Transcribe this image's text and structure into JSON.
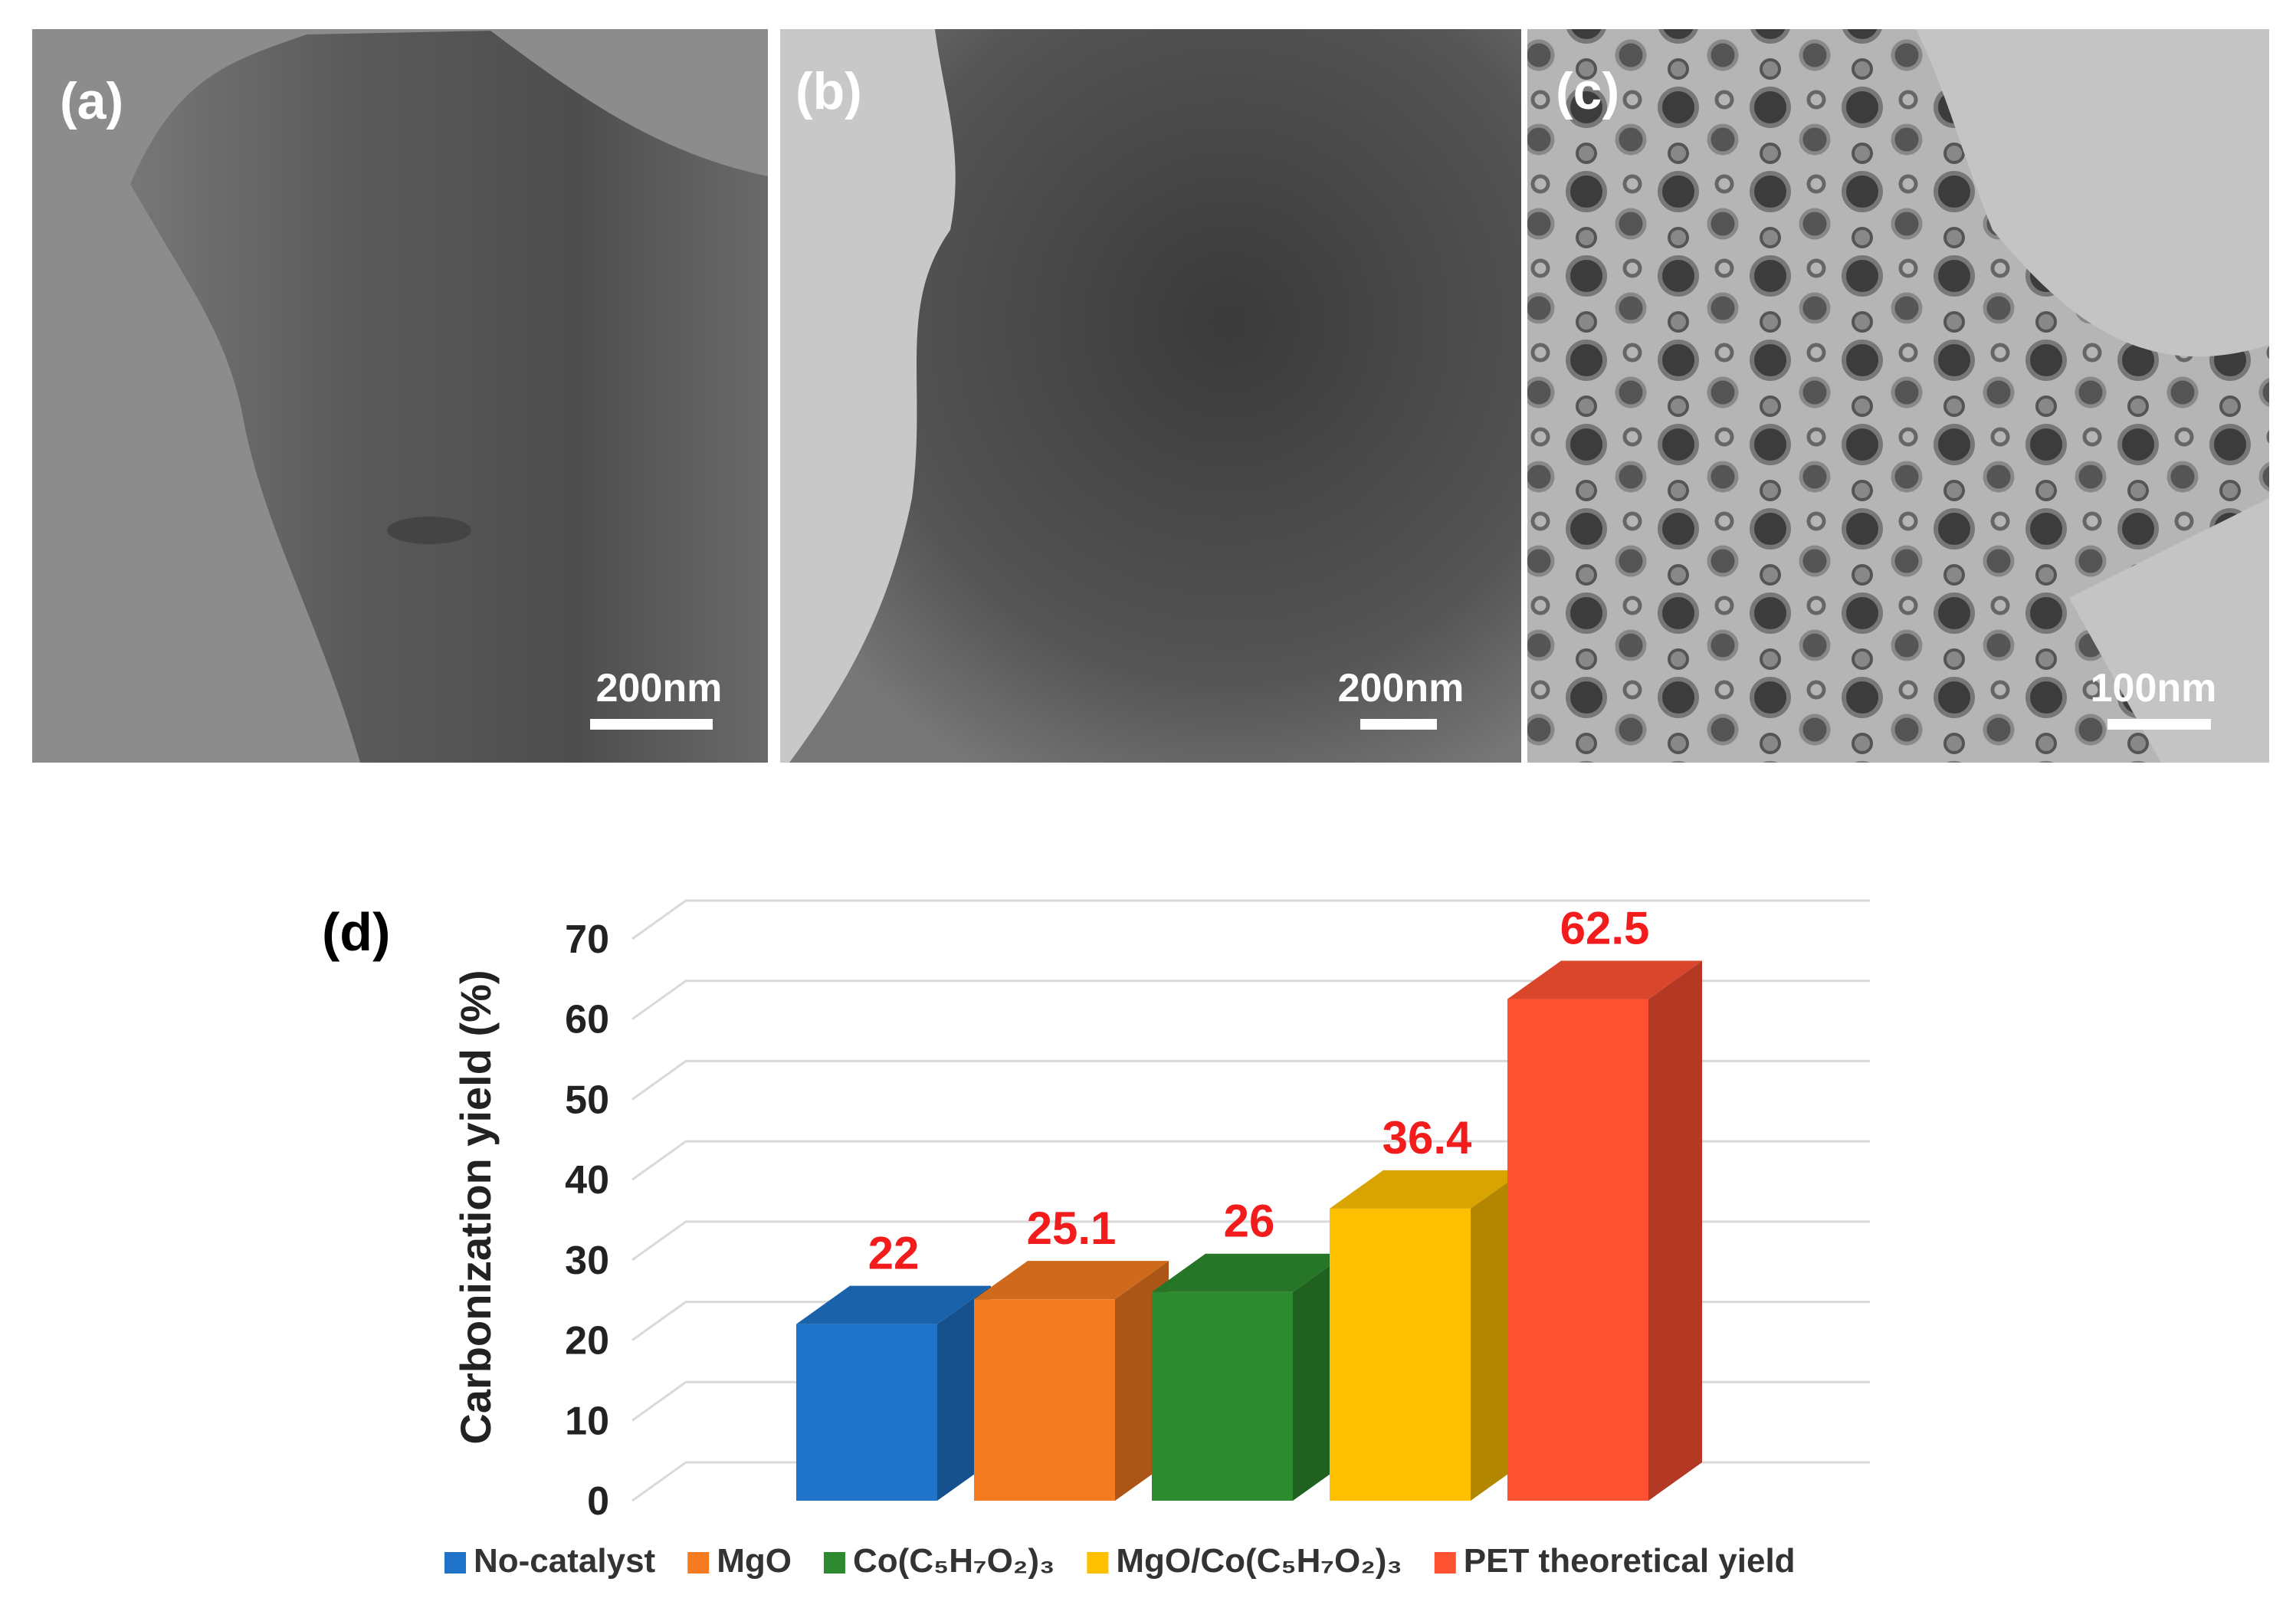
{
  "panels": [
    {
      "label": "(a)",
      "scale_bar": "200nm"
    },
    {
      "label": "(b)",
      "scale_bar": "200nm"
    },
    {
      "label": "(c)",
      "scale_bar": "100nm"
    }
  ],
  "chart_data": {
    "type": "bar",
    "panel_label": "(d)",
    "ylabel": "Carbonization yield (%)",
    "categories": [
      "No-catalyst",
      "MgO",
      "Co(C₅H₇O₂)₃",
      "MgO/Co(C₅H₇O₂)₃",
      "PET theoretical yield"
    ],
    "values": [
      22,
      25.1,
      26,
      36.4,
      62.5
    ],
    "colors": [
      "#1f74c9",
      "#f47b20",
      "#2e8a2e",
      "#ffc000",
      "#ff5233"
    ],
    "ylim": [
      0,
      70
    ],
    "yticks": [
      0,
      10,
      20,
      30,
      40,
      50,
      60,
      70
    ],
    "grid": true,
    "legend": "bottom"
  }
}
